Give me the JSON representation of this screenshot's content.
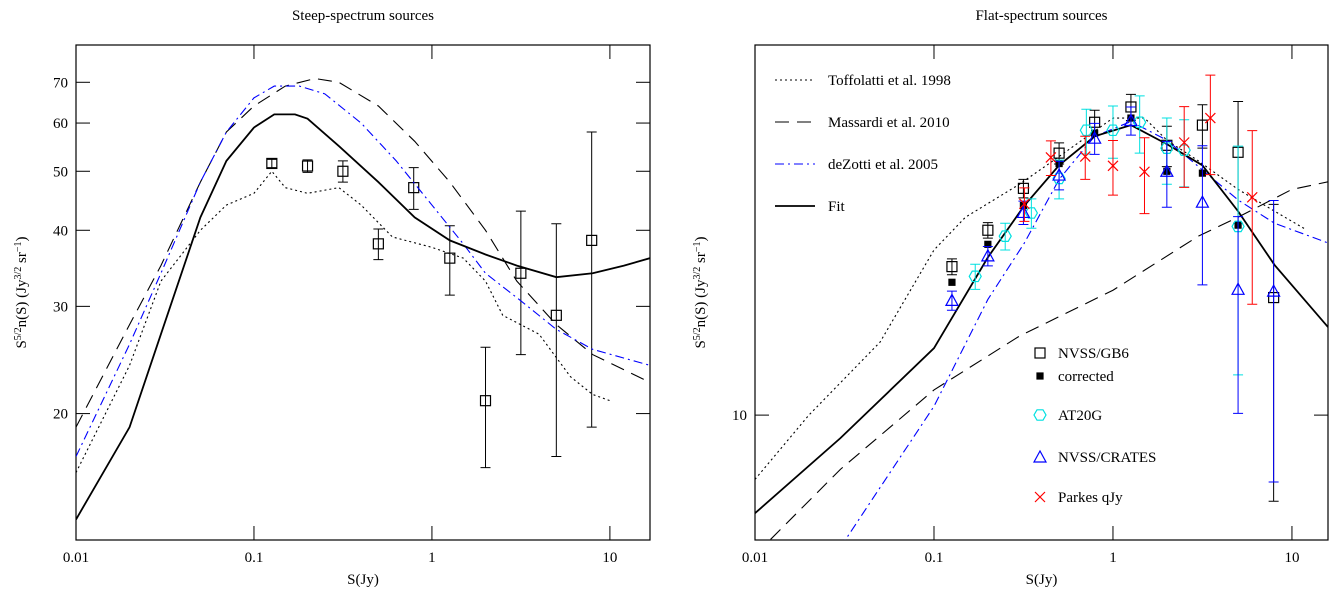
{
  "chart_data": [
    {
      "type": "line",
      "title": "Steep-spectrum sources",
      "xlabel": "S(Jy)",
      "ylabel": [
        {
          "text": "S"
        },
        {
          "text": "5/2",
          "sup": true
        },
        {
          "text": "n(S)  (Jy"
        },
        {
          "text": "3/2",
          "sup": true
        },
        {
          "text": " sr"
        },
        {
          "text": "−1",
          "sup": true
        },
        {
          "text": ")"
        }
      ],
      "xscale": "log",
      "yscale": "log",
      "xlim": [
        0.01,
        16.8
      ],
      "ylim": [
        12.4,
        80.6
      ],
      "xticks": [
        0.01,
        0.1,
        1,
        10
      ],
      "yticks": [
        20,
        30,
        40,
        50,
        60,
        70
      ],
      "series": [
        {
          "marker": "square",
          "color": "#000000",
          "x": [
            0.126,
            0.2,
            0.316,
            0.5,
            0.79,
            1.26,
            2,
            3.16,
            5,
            7.9
          ],
          "values": [
            51.5,
            51,
            50,
            38,
            47,
            36,
            21,
            34,
            29,
            38.5
          ],
          "errors": [
            0.8,
            1.2,
            2,
            2.2,
            3.7,
            4.7,
            4.7,
            9,
            12,
            19.5
          ]
        },
        {
          "dash": "dotted",
          "color": "#000000",
          "x": [
            0.01,
            0.02,
            0.03,
            0.05,
            0.07,
            0.1,
            0.126,
            0.15,
            0.2,
            0.3,
            0.4,
            0.6,
            1,
            1.5,
            2,
            2.5,
            4,
            6,
            8,
            10
          ],
          "values": [
            16,
            24,
            33,
            40,
            44,
            46,
            50,
            47,
            46,
            47,
            44,
            39,
            37.5,
            36,
            33,
            29,
            27,
            23,
            21.5,
            21
          ]
        },
        {
          "dash": "dashed",
          "color": "#000000",
          "x": [
            0.01,
            0.02,
            0.03,
            0.05,
            0.07,
            0.1,
            0.15,
            0.22,
            0.3,
            0.5,
            0.8,
            1.26,
            2,
            3,
            5,
            8,
            16.8
          ],
          "values": [
            19,
            28,
            35,
            48,
            58,
            64,
            69,
            71,
            70,
            64,
            56,
            48,
            40,
            33,
            28,
            25,
            22.5
          ]
        },
        {
          "dash": "dashdot",
          "color": "#0000ff",
          "x": [
            0.01,
            0.02,
            0.03,
            0.05,
            0.07,
            0.1,
            0.13,
            0.18,
            0.25,
            0.4,
            0.63,
            1,
            1.5,
            2,
            3,
            5,
            8,
            16.8
          ],
          "values": [
            17,
            26,
            34,
            48,
            58,
            66,
            69,
            69,
            67,
            60,
            52,
            44,
            38,
            34,
            31,
            27.5,
            25.5,
            24
          ]
        },
        {
          "dash": "solid",
          "color": "#000000",
          "x": [
            0.01,
            0.02,
            0.03,
            0.05,
            0.07,
            0.1,
            0.13,
            0.17,
            0.2,
            0.3,
            0.5,
            0.8,
            1.26,
            2,
            3,
            5,
            8,
            12,
            16.8
          ],
          "values": [
            13.4,
            19,
            27,
            42,
            52,
            59,
            62,
            62,
            61,
            55,
            48,
            42,
            38.5,
            36.5,
            35,
            33.5,
            34,
            35,
            36
          ]
        }
      ]
    },
    {
      "type": "line",
      "title": "Flat-spectrum sources",
      "xlabel": "S(Jy)",
      "ylabel": [
        {
          "text": "S"
        },
        {
          "text": "5/2",
          "sup": true
        },
        {
          "text": "n(S)  (Jy"
        },
        {
          "text": "3/2",
          "sup": true
        },
        {
          "text": " sr"
        },
        {
          "text": "−1",
          "sup": true
        },
        {
          "text": ")"
        }
      ],
      "xscale": "log",
      "yscale": "log",
      "xlim": [
        0.01,
        15.9
      ],
      "ylim": [
        5,
        78
      ],
      "xticks": [
        0.01,
        0.1,
        1,
        10
      ],
      "yticks": [
        10
      ],
      "series": [
        {
          "name": "Toffolatti et al. 1998",
          "dash": "dotted",
          "color": "#000000",
          "x": [
            0.01,
            0.02,
            0.05,
            0.1,
            0.15,
            0.3,
            0.5,
            1,
            1.5,
            2,
            3,
            5,
            8,
            12
          ],
          "values": [
            7,
            10,
            15,
            25,
            30,
            36,
            42,
            52,
            52,
            46,
            41,
            35,
            31,
            28
          ]
        },
        {
          "name": "Massardi et al. 2010",
          "dash": "dashed",
          "color": "#000000",
          "x": [
            0.01,
            0.03,
            0.1,
            0.3,
            1,
            3,
            5,
            10,
            15.9
          ],
          "values": [
            4.6,
            7.4,
            11.5,
            15.5,
            20,
            27,
            30,
            35,
            36.5
          ]
        },
        {
          "name": "deZotti et al. 2005",
          "dash": "dashdot",
          "color": "#0000ff",
          "x": [
            0.03,
            0.1,
            0.2,
            0.32,
            0.5,
            0.79,
            1.26,
            2,
            3.16,
            5,
            8,
            15.9
          ],
          "values": [
            4.8,
            10.5,
            19,
            26,
            37,
            47,
            51,
            46,
            39,
            33,
            29,
            26
          ]
        },
        {
          "name": "Fit",
          "dash": "solid",
          "color": "#000000",
          "x": [
            0.01,
            0.03,
            0.1,
            0.2,
            0.32,
            0.5,
            0.79,
            1.26,
            2,
            3.16,
            5,
            8,
            15.9
          ],
          "values": [
            5.8,
            8.8,
            14.5,
            24,
            32,
            40,
            47,
            50,
            45,
            40,
            31,
            23,
            16.3
          ]
        },
        {
          "name": "NVSS/GB6",
          "marker": "square",
          "color": "#000000",
          "x": [
            0.126,
            0.2,
            0.316,
            0.5,
            0.79,
            1.26,
            2,
            3.16,
            5,
            7.9
          ],
          "values": [
            22.8,
            27.9,
            35.2,
            42.8,
            50.8,
            55.3,
            44.7,
            50,
            43,
            19.2
          ],
          "errors": [
            1,
            1.2,
            1.8,
            2.5,
            3.5,
            4,
            5,
            6,
            14,
            13
          ]
        },
        {
          "name": "corrected",
          "marker": "filled-square",
          "color": "#000000",
          "x": [
            0.126,
            0.2,
            0.316,
            0.5,
            0.79,
            1.26,
            2,
            3.16,
            5
          ],
          "values": [
            20.9,
            25.8,
            32,
            40.4,
            47.8,
            52,
            38.7,
            38.3,
            28.7
          ]
        },
        {
          "name": "AT20G",
          "marker": "hexagon",
          "color": "#00e0e0",
          "x": [
            0.17,
            0.25,
            0.35,
            0.5,
            0.71,
            1,
            1.41,
            2,
            2.5,
            5
          ],
          "values": [
            21.6,
            27,
            30.7,
            37.2,
            48.6,
            48.6,
            50.8,
            44,
            43.5,
            28.5
          ],
          "errors": [
            1.5,
            2,
            2.5,
            4,
            6,
            7,
            8,
            8,
            8,
            16
          ]
        },
        {
          "name": "NVSS/CRATES",
          "marker": "triangle",
          "color": "#0000ff",
          "x": [
            0.126,
            0.2,
            0.316,
            0.5,
            0.79,
            1.26,
            2,
            3.16,
            5,
            7.9
          ],
          "values": [
            18.9,
            24.2,
            30.8,
            37.9,
            46.5,
            51.3,
            38.7,
            32.6,
            20.1,
            19.9
          ],
          "errors": [
            1,
            1.3,
            2,
            3,
            4,
            4,
            7,
            12,
            10,
            13
          ]
        },
        {
          "name": "Parkes qJy",
          "marker": "cross",
          "color": "#ff0000",
          "x": [
            0.32,
            0.45,
            0.7,
            1,
            1.5,
            2.5,
            3.5,
            6
          ],
          "values": [
            32.3,
            41.8,
            42,
            39.9,
            38.6,
            45.4,
            52,
            33.5
          ],
          "errors": [
            3,
            4,
            5,
            6,
            8,
            10,
            14,
            15
          ]
        }
      ]
    }
  ]
}
